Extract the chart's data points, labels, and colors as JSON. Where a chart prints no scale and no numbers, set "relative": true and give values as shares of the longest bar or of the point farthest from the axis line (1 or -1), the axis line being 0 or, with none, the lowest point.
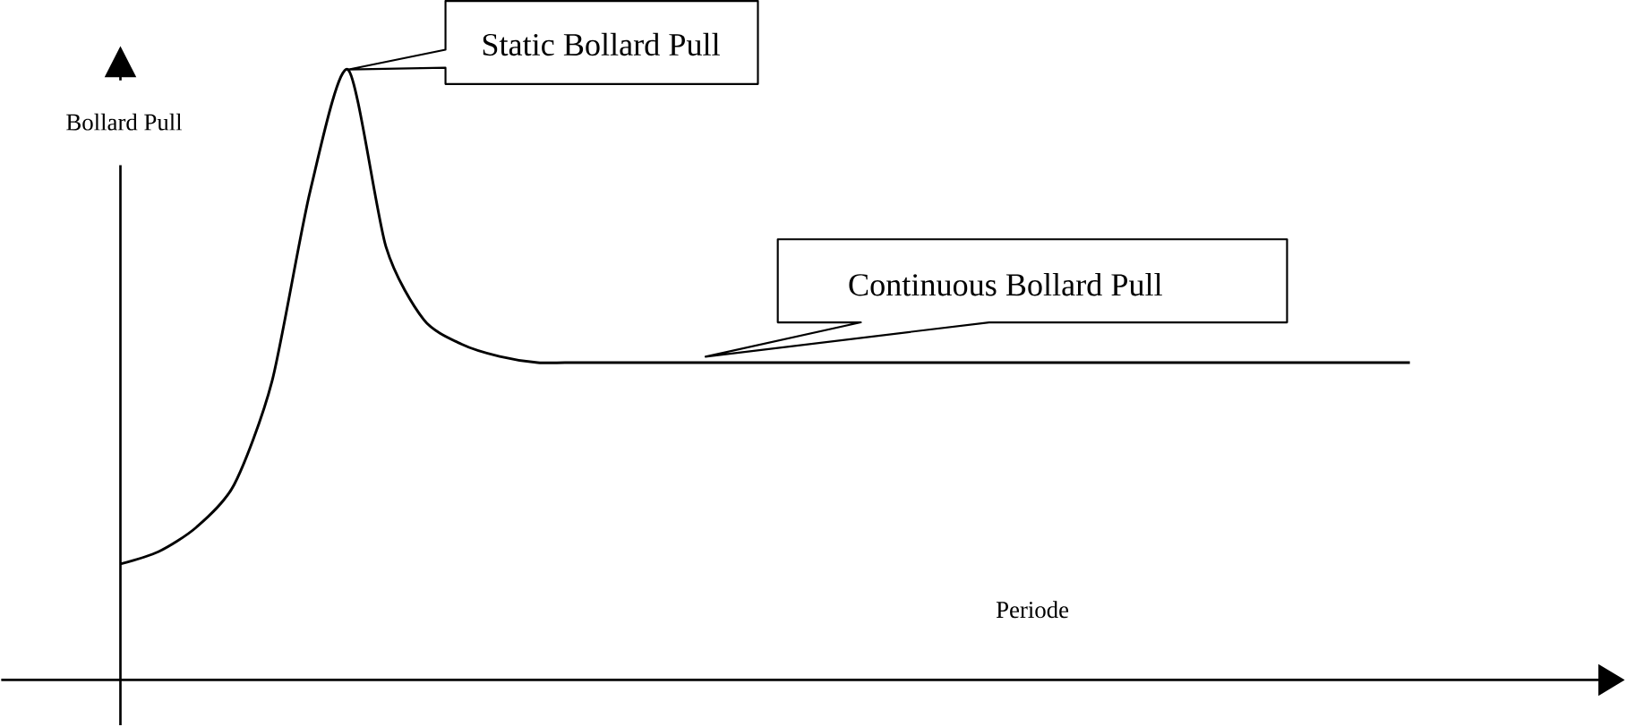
{
  "chart_data": {
    "type": "line",
    "relative": true,
    "xlabel": "Periode",
    "ylabel": "Bollard Pull",
    "categories": [
      null,
      null,
      null,
      null,
      null,
      null,
      null,
      null,
      null,
      null,
      null,
      null,
      null,
      null,
      null,
      null,
      null,
      null,
      null,
      null,
      null,
      null,
      null,
      null,
      null,
      null,
      null,
      null,
      null,
      null,
      null,
      null,
      null,
      null,
      null
    ],
    "series": [
      {
        "color": "#000000",
        "values": [
          0.19,
          0.21,
          0.25,
          0.32,
          0.49,
          0.8,
          1.0,
          0.71,
          0.59,
          0.55,
          0.53,
          0.52,
          0.52,
          0.52,
          0.52,
          0.52,
          0.52,
          0.52,
          0.52,
          0.52,
          0.52,
          0.52,
          0.52,
          0.52,
          0.52,
          0.52,
          0.52,
          0.52,
          0.52,
          0.52,
          0.52,
          0.52,
          0.52,
          0.52,
          0.52
        ]
      }
    ],
    "annotations": [
      "Static Bollard Pull",
      "Continuous Bollard Pull"
    ]
  }
}
